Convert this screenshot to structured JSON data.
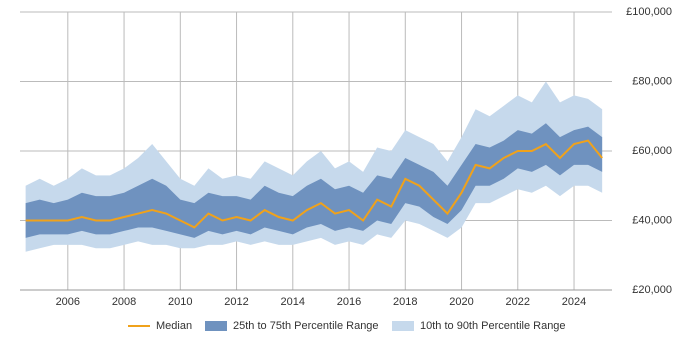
{
  "chart_data": {
    "type": "band-line",
    "x": [
      2004.5,
      2005,
      2005.5,
      2006,
      2006.5,
      2007,
      2007.5,
      2008,
      2008.5,
      2009,
      2009.5,
      2010,
      2010.5,
      2011,
      2011.5,
      2012,
      2012.5,
      2013,
      2013.5,
      2014,
      2014.5,
      2015,
      2015.5,
      2016,
      2016.5,
      2017,
      2017.5,
      2018,
      2018.5,
      2019,
      2019.5,
      2020,
      2020.5,
      2021,
      2021.5,
      2022,
      2022.5,
      2023,
      2023.5,
      2024,
      2024.5,
      2025
    ],
    "series": [
      {
        "name": "Median",
        "color": "#f0a21b",
        "values": [
          40000,
          40000,
          40000,
          40000,
          41000,
          40000,
          40000,
          41000,
          42000,
          43000,
          42000,
          40000,
          38000,
          42000,
          40000,
          41000,
          40000,
          43000,
          41000,
          40000,
          43000,
          45000,
          42000,
          43000,
          40000,
          46000,
          44000,
          52000,
          50000,
          46000,
          42000,
          48000,
          56000,
          55000,
          58000,
          60000,
          60000,
          62000,
          58000,
          62000,
          63000,
          58000
        ]
      },
      {
        "name": "25th to 75th Percentile Range",
        "color": "#6f92bf",
        "low": [
          35000,
          36000,
          36000,
          36000,
          37000,
          36000,
          36000,
          37000,
          38000,
          38000,
          37000,
          36000,
          35000,
          37000,
          36000,
          37000,
          36000,
          38000,
          37000,
          36000,
          38000,
          39000,
          37000,
          38000,
          37000,
          40000,
          39000,
          45000,
          44000,
          41000,
          39000,
          43000,
          50000,
          50000,
          52000,
          55000,
          54000,
          56000,
          53000,
          56000,
          56000,
          54000
        ],
        "high": [
          45000,
          46000,
          45000,
          46000,
          48000,
          47000,
          47000,
          48000,
          50000,
          52000,
          50000,
          46000,
          45000,
          48000,
          47000,
          47000,
          46000,
          50000,
          48000,
          47000,
          50000,
          52000,
          49000,
          50000,
          48000,
          53000,
          52000,
          58000,
          56000,
          54000,
          50000,
          56000,
          62000,
          61000,
          63000,
          66000,
          65000,
          68000,
          64000,
          66000,
          67000,
          64000
        ]
      },
      {
        "name": "10th to 90th Percentile Range",
        "color": "#c6d9ec",
        "low": [
          31000,
          32000,
          33000,
          33000,
          33000,
          32000,
          32000,
          33000,
          34000,
          33000,
          33000,
          32000,
          32000,
          33000,
          33000,
          34000,
          33000,
          34000,
          33000,
          33000,
          34000,
          35000,
          33000,
          34000,
          33000,
          36000,
          35000,
          40000,
          39000,
          37000,
          35000,
          38000,
          45000,
          45000,
          47000,
          49000,
          48000,
          50000,
          47000,
          50000,
          50000,
          48000
        ],
        "high": [
          50000,
          52000,
          50000,
          52000,
          55000,
          53000,
          53000,
          55000,
          58000,
          62000,
          57000,
          52000,
          50000,
          55000,
          52000,
          53000,
          52000,
          57000,
          55000,
          53000,
          57000,
          60000,
          55000,
          57000,
          54000,
          61000,
          60000,
          66000,
          64000,
          62000,
          57000,
          64000,
          72000,
          70000,
          73000,
          76000,
          74000,
          80000,
          74000,
          76000,
          75000,
          72000
        ]
      }
    ],
    "xlim": [
      2004.3,
      2025.35
    ],
    "xticks": [
      2006,
      2008,
      2010,
      2012,
      2014,
      2016,
      2018,
      2020,
      2022,
      2024
    ],
    "ylim": [
      20000,
      100000
    ],
    "yticks": [
      {
        "value": 20000,
        "label": "£20,000"
      },
      {
        "value": 40000,
        "label": "£40,000"
      },
      {
        "value": 60000,
        "label": "£60,000"
      },
      {
        "value": 80000,
        "label": "£80,000"
      },
      {
        "value": 100000,
        "label": "£100,000"
      }
    ],
    "grid": true
  }
}
